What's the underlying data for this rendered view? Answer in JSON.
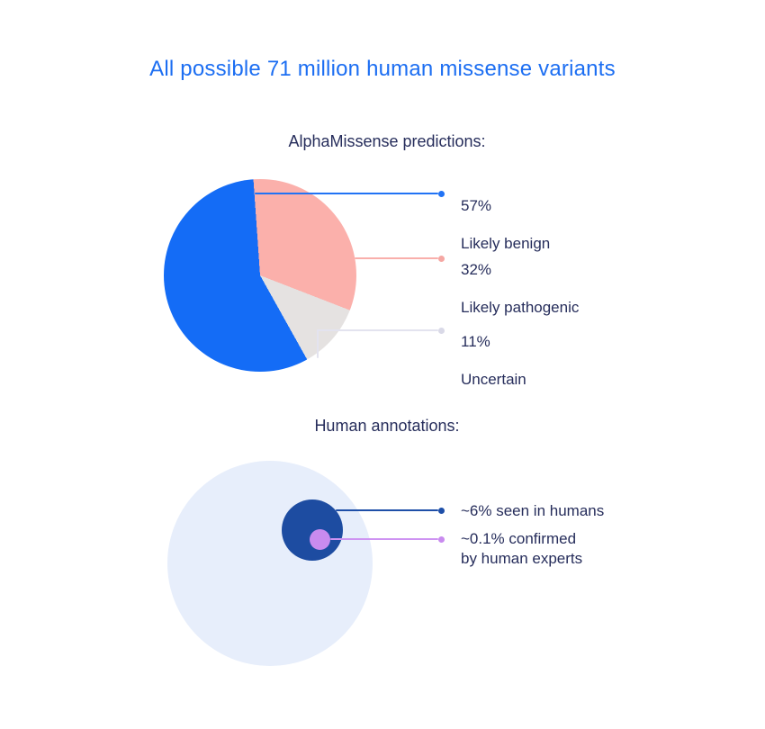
{
  "theme": {
    "background": "#FFFFFF",
    "text_color": "#262D5B"
  },
  "title": {
    "text": "All possible 71 million human missense variants",
    "color": "#1C6EF2"
  },
  "pie_section": {
    "heading": "AlphaMissense predictions:",
    "callouts": [
      {
        "percent": "57%",
        "label": "Likely benign",
        "line_color": "#2173F5",
        "dot_color": "#2173F5"
      },
      {
        "percent": "32%",
        "label": "Likely pathogenic",
        "line_color": "#F9AFAB",
        "dot_color": "#F5A7A3"
      },
      {
        "percent": "11%",
        "label": "Uncertain",
        "line_color": "#E3E3EF",
        "dot_color": "#D9D9E7"
      }
    ]
  },
  "annotation_section": {
    "heading": "Human annotations:",
    "circles": {
      "outer_color": "#E7EEFB",
      "middle_color": "#1D4CA1",
      "inner_color": "#C98BEF"
    },
    "callouts": [
      {
        "label": "~6% seen in humans",
        "line_color": "#1E4FA8",
        "dot_color": "#1E4FA8"
      },
      {
        "label": "~0.1% confirmed\nby human experts",
        "line_color": "#CE93F2",
        "dot_color": "#C98BEF"
      }
    ]
  },
  "chart_data": [
    {
      "type": "pie",
      "title": "AlphaMissense predictions:",
      "categories": [
        "Likely benign",
        "Likely pathogenic",
        "Uncertain"
      ],
      "values": [
        57,
        32,
        11
      ],
      "unit": "%",
      "colors": [
        "#146CF6",
        "#FBB0AB",
        "#E5E2E1"
      ],
      "start_angle_deg": -4,
      "direction": "clockwise",
      "clockwise_segments": [
        {
          "label": "Likely pathogenic",
          "value": 32,
          "color": "#FBB0AB"
        },
        {
          "label": "Uncertain",
          "value": 11,
          "color": "#E5E2E1"
        },
        {
          "label": "Likely benign",
          "value": 57,
          "color": "#146CF6"
        }
      ],
      "legend_position": "right-callouts"
    },
    {
      "type": "nested-circles",
      "title": "Human annotations:",
      "circles": [
        {
          "name": "all-variants",
          "value_label": "",
          "color": "#E7EEFB",
          "relative_diameter": 1.0
        },
        {
          "name": "seen-in-humans",
          "value_label": "~6% seen in humans",
          "value_pct": 6,
          "approximate": true,
          "color": "#1D4CA1",
          "relative_diameter": 0.3
        },
        {
          "name": "expert-confirmed",
          "value_label": "~0.1% confirmed by human experts",
          "value_pct": 0.1,
          "approximate": true,
          "color": "#C98BEF",
          "relative_diameter": 0.1
        }
      ],
      "legend_position": "right-callouts"
    }
  ]
}
